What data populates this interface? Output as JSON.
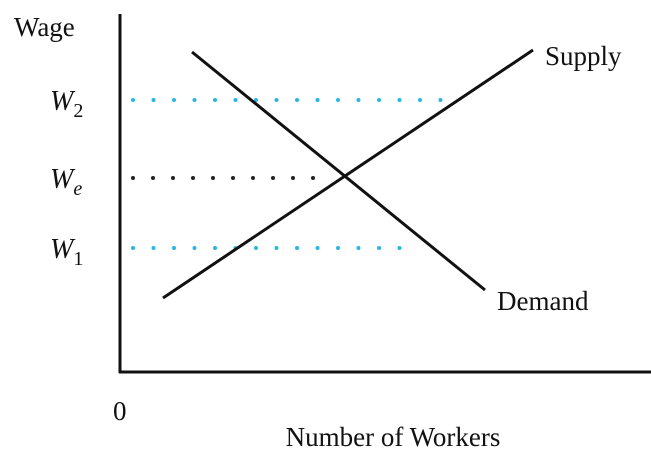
{
  "axes": {
    "y_label": "Wage",
    "x_label": "Number of Workers",
    "origin": "0"
  },
  "levels": [
    {
      "main": "W",
      "sub": "2"
    },
    {
      "main": "W",
      "sub": "e"
    },
    {
      "main": "W",
      "sub": "1"
    }
  ],
  "curves": {
    "supply": "Supply",
    "demand": "Demand"
  }
}
